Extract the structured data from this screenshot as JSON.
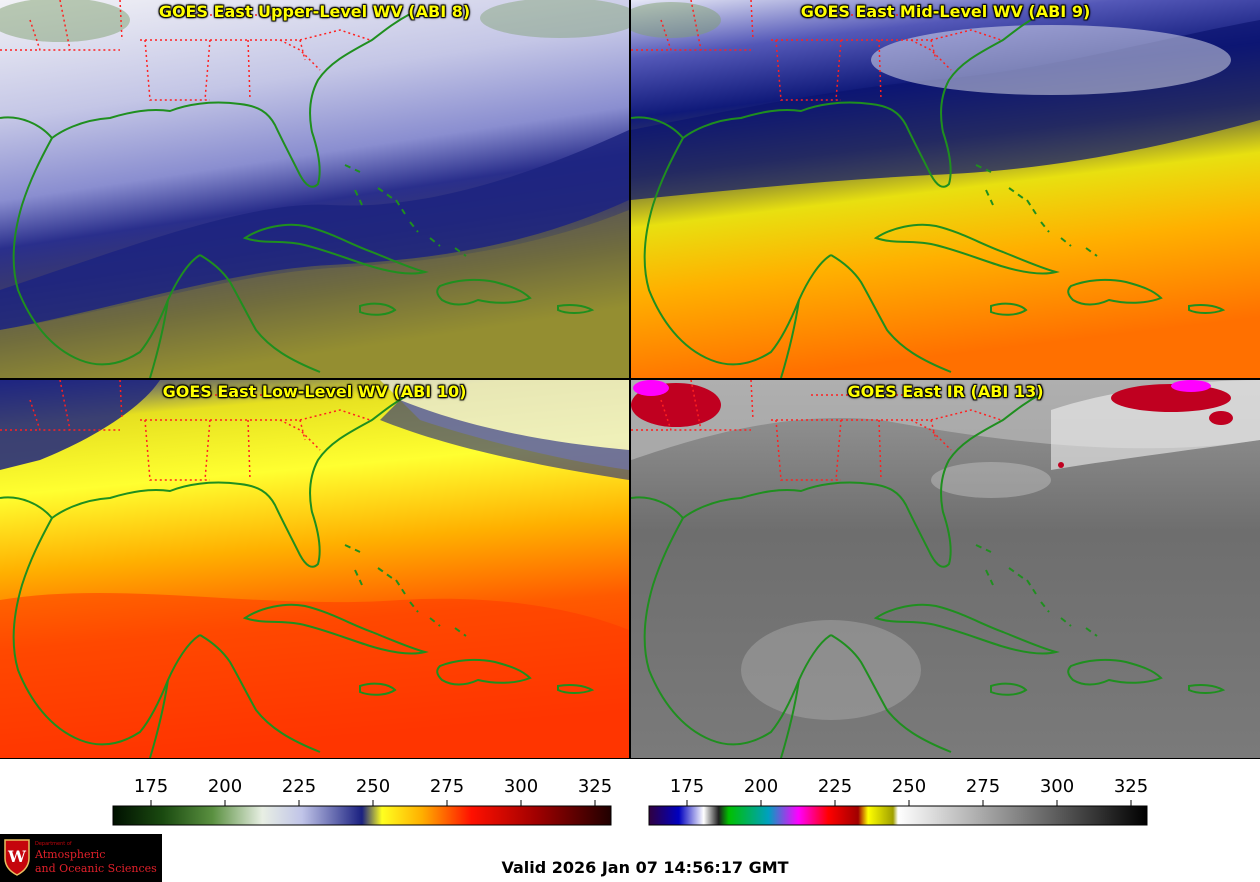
{
  "panels": {
    "upper": {
      "title": "GOES East Upper-Level WV (ABI 8)"
    },
    "mid": {
      "title": "GOES East Mid-Level WV (ABI 9)"
    },
    "low": {
      "title": "GOES East Low-Level WV (ABI 10)"
    },
    "ir": {
      "title": "GOES East IR (ABI 13)"
    }
  },
  "colorbars": {
    "wv": {
      "ticks": [
        "175",
        "200",
        "225",
        "250",
        "275",
        "300",
        "325"
      ]
    },
    "ir": {
      "ticks": [
        "175",
        "200",
        "225",
        "250",
        "275",
        "300",
        "325"
      ]
    }
  },
  "logo": {
    "line1": "Department of",
    "line2": "Atmospheric",
    "line3": "and Oceanic Sciences"
  },
  "valid_time": "Valid 2026 Jan 07 14:56:17 GMT",
  "colors": {
    "title_text": "#ffff00",
    "coastline": "#1f8f1f",
    "state_borders": "#ff2020"
  }
}
